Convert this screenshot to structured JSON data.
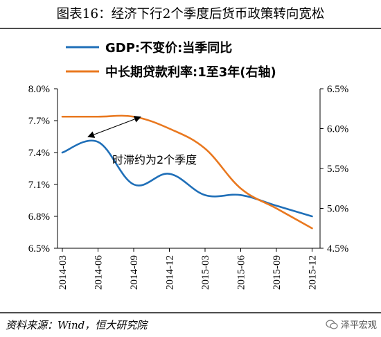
{
  "title": "图表16：经济下行2个季度后货币政策转向宽松",
  "source": "资料来源：Wind，恒大研究院",
  "watermark": "泽平宏观",
  "chart_data": {
    "type": "line",
    "x": [
      "2014-03",
      "2014-06",
      "2014-09",
      "2014-12",
      "2015-03",
      "2015-06",
      "2015-09",
      "2015-12"
    ],
    "series": [
      {
        "name": "GDP:不变价:当季同比",
        "axis": "left",
        "color": "#1f6fb8",
        "values": [
          7.4,
          7.5,
          7.1,
          7.2,
          7.0,
          7.0,
          6.9,
          6.8
        ]
      },
      {
        "name": "中长期贷款利率:1至3年(右轴)",
        "axis": "right",
        "color": "#e9781f",
        "values": [
          6.15,
          6.15,
          6.15,
          6.0,
          5.75,
          5.25,
          5.0,
          4.75
        ]
      }
    ],
    "left_axis": {
      "min": 6.5,
      "max": 8.0,
      "ticks": [
        "6.5%",
        "6.8%",
        "7.1%",
        "7.4%",
        "7.7%",
        "8.0%"
      ]
    },
    "right_axis": {
      "min": 4.5,
      "max": 6.5,
      "ticks": [
        "4.5%",
        "5.0%",
        "5.5%",
        "6.0%",
        "6.5%"
      ]
    },
    "annotation": "时滞约为2个季度",
    "grid": false,
    "legend_position": "top"
  }
}
